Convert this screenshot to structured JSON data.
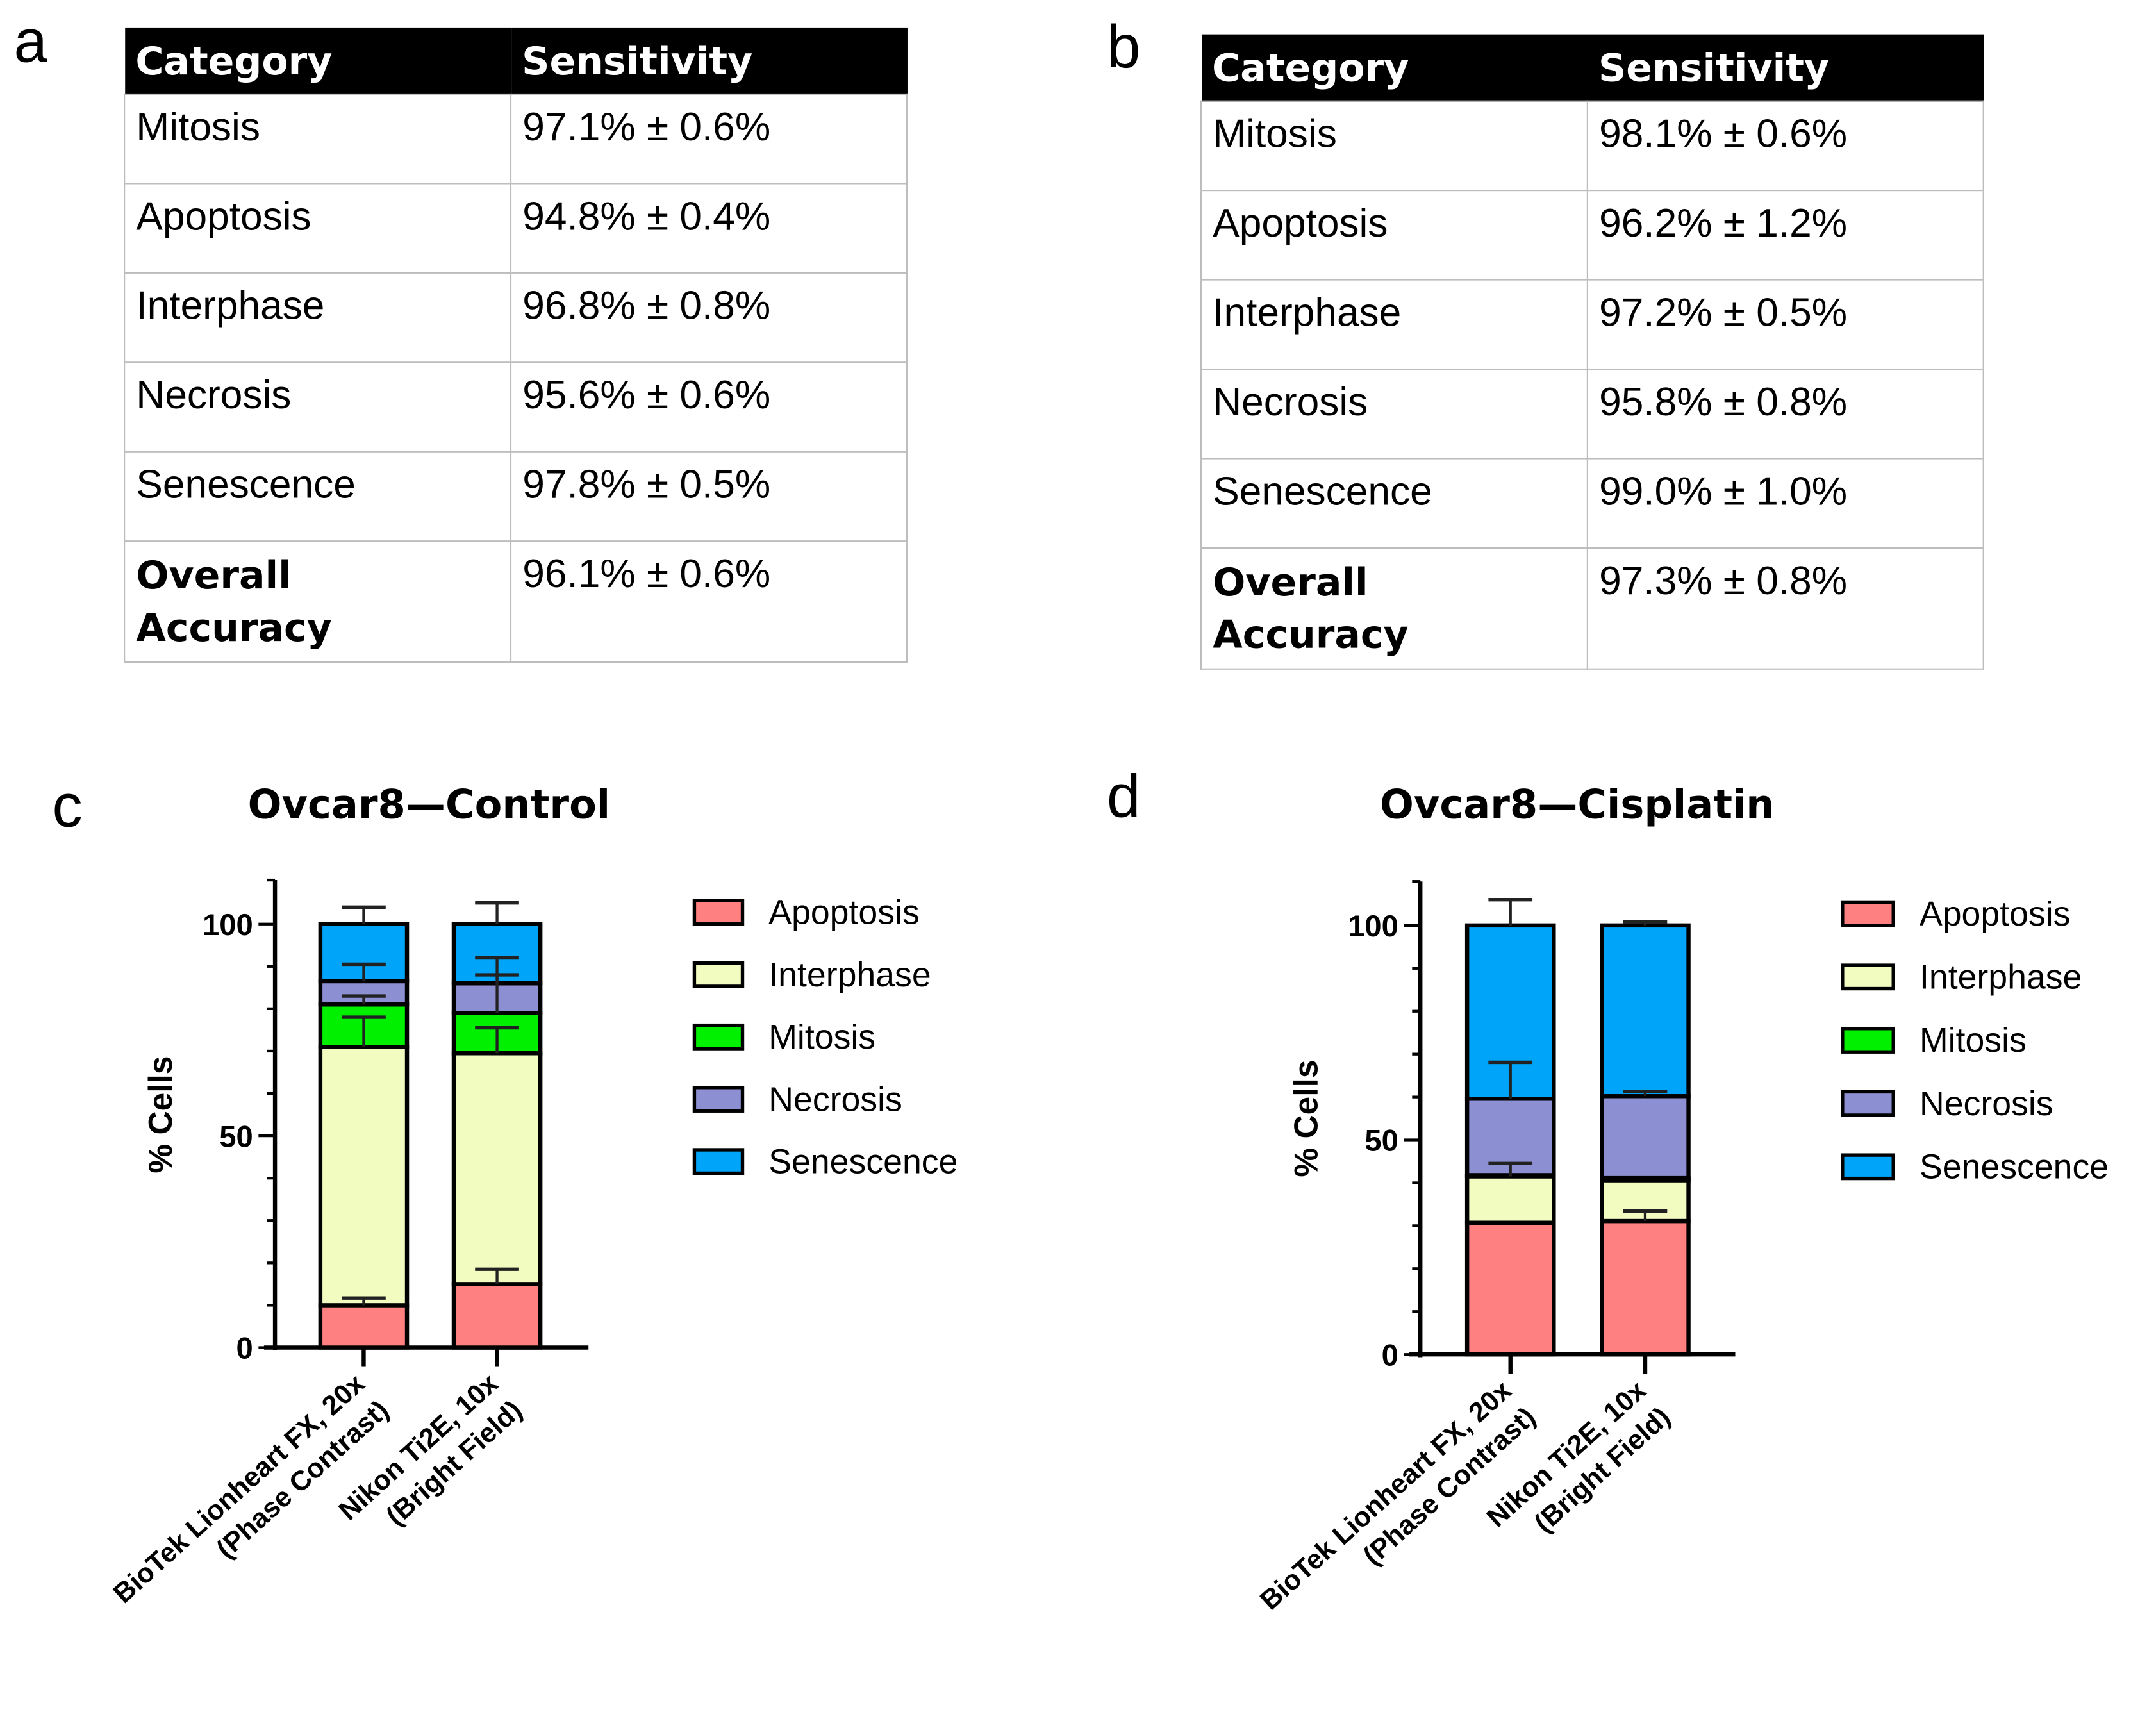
{
  "panels": {
    "a": "a",
    "b": "b",
    "c": "c",
    "d": "d"
  },
  "tables": [
    {
      "headers": [
        "Category",
        "Sensitivity"
      ],
      "rows": [
        [
          "Mitosis",
          "97.1% ± 0.6%"
        ],
        [
          "Apoptosis",
          "94.8% ± 0.4%"
        ],
        [
          "Interphase",
          "96.8% ± 0.8%"
        ],
        [
          "Necrosis",
          "95.6% ± 0.6%"
        ],
        [
          "Senescence",
          "97.8% ± 0.5%"
        ]
      ],
      "overall": {
        "label_line1": "Overall",
        "label_line2": "Accuracy",
        "value": "96.1% ± 0.6%"
      }
    },
    {
      "headers": [
        "Category",
        "Sensitivity"
      ],
      "rows": [
        [
          "Mitosis",
          "98.1% ± 0.6%"
        ],
        [
          "Apoptosis",
          "96.2% ± 1.2%"
        ],
        [
          "Interphase",
          "97.2% ± 0.5%"
        ],
        [
          "Necrosis",
          "95.8% ± 0.8%"
        ],
        [
          "Senescence",
          "99.0% ± 1.0%"
        ]
      ],
      "overall": {
        "label_line1": "Overall",
        "label_line2": "Accuracy",
        "value": "97.3% ± 0.8%"
      }
    }
  ],
  "chart_data": [
    {
      "type": "bar",
      "stacked": true,
      "title": "Ovcar8—Control",
      "ylabel": "% Cells",
      "ylim": [
        0,
        110
      ],
      "yticks": [
        "0",
        "50",
        "100"
      ],
      "categories": [
        [
          "BioTek Lionheart FX, 20x",
          "(Phase Contrast)"
        ],
        [
          "Nikon Ti2E, 10x",
          "(Bright Field)"
        ]
      ],
      "legend_position": "right",
      "series": [
        {
          "name": "Apoptosis",
          "color": "#ff8080",
          "values": [
            10,
            15
          ],
          "errors": [
            1.7,
            3.5
          ]
        },
        {
          "name": "Interphase",
          "color": "#f2fcc0",
          "values": [
            61,
            54.5
          ],
          "errors": [
            7,
            6
          ]
        },
        {
          "name": "Mitosis",
          "color": "#00f000",
          "values": [
            10,
            9.5
          ],
          "errors": [
            2,
            9
          ]
        },
        {
          "name": "Necrosis",
          "color": "#8c8fd2",
          "values": [
            5.5,
            7
          ],
          "errors": [
            4,
            6
          ]
        },
        {
          "name": "Senescence",
          "color": "#00a4f8",
          "values": [
            13.5,
            14
          ],
          "errors": [
            4,
            5
          ]
        }
      ]
    },
    {
      "type": "bar",
      "stacked": true,
      "title": "Ovcar8—Cisplatin",
      "ylabel": "% Cells",
      "ylim": [
        0,
        110
      ],
      "yticks": [
        "0",
        "50",
        "100"
      ],
      "categories": [
        [
          "BioTek Lionheart FX, 20x",
          "(Phase Contrast)"
        ],
        [
          "Nikon Ti2E, 10x",
          "(Bright Field)"
        ]
      ],
      "legend_position": "right",
      "series": [
        {
          "name": "Apoptosis",
          "color": "#ff8080",
          "values": [
            30.7,
            31.1
          ],
          "errors": [
            0,
            2.3
          ]
        },
        {
          "name": "Interphase",
          "color": "#f2fcc0",
          "values": [
            10.8,
            9.5
          ],
          "errors": [
            3,
            0
          ]
        },
        {
          "name": "Mitosis",
          "color": "#00f000",
          "values": [
            0.3,
            0.5
          ],
          "errors": [
            0,
            0
          ]
        },
        {
          "name": "Necrosis",
          "color": "#8c8fd2",
          "values": [
            17.8,
            19.1
          ],
          "errors": [
            8.5,
            1.1
          ]
        },
        {
          "name": "Senescence",
          "color": "#00a4f8",
          "values": [
            40.4,
            39.8
          ],
          "errors": [
            6,
            0.8
          ]
        }
      ]
    }
  ]
}
